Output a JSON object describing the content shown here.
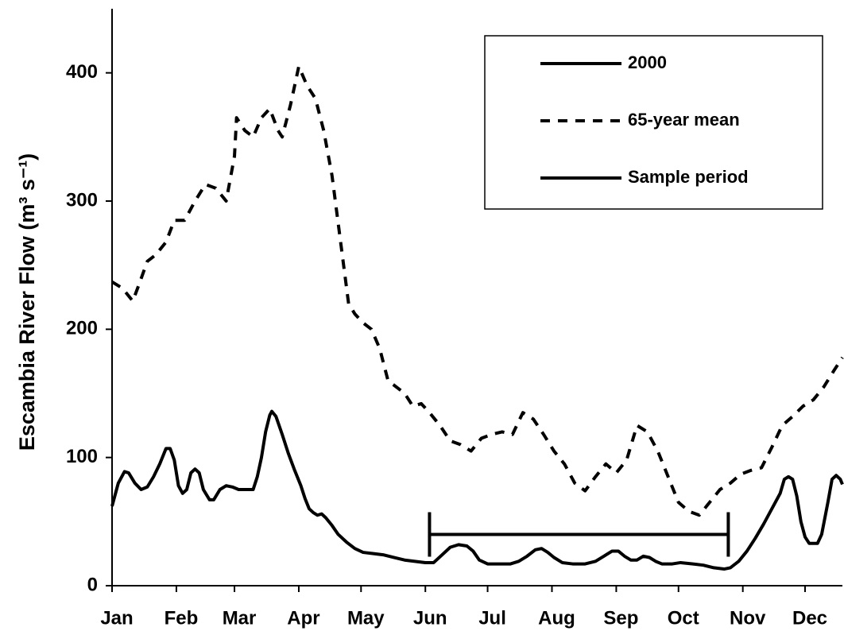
{
  "chart_data": {
    "type": "line",
    "y_label": "Escambia River Flow (m³ s⁻¹)",
    "xlim": [
      0,
      352
    ],
    "ylim": [
      0,
      450
    ],
    "xticks": [
      {
        "value": 0,
        "label": "Jan"
      },
      {
        "value": 31,
        "label": "Feb"
      },
      {
        "value": 59,
        "label": "Mar"
      },
      {
        "value": 90,
        "label": "Apr"
      },
      {
        "value": 120,
        "label": "May"
      },
      {
        "value": 151,
        "label": "Jun"
      },
      {
        "value": 181,
        "label": "Jul"
      },
      {
        "value": 212,
        "label": "Aug"
      },
      {
        "value": 243,
        "label": "Sep"
      },
      {
        "value": 273,
        "label": "Oct"
      },
      {
        "value": 304,
        "label": "Nov"
      },
      {
        "value": 334,
        "label": "Dec"
      }
    ],
    "yticks": [
      0,
      100,
      200,
      300,
      400
    ],
    "legend": "upper right",
    "series": [
      {
        "name": "2000",
        "color": "#000000",
        "dash": false,
        "x": [
          0,
          3,
          6,
          8,
          11,
          14,
          17,
          20,
          23,
          26,
          28,
          30,
          32,
          34,
          36,
          38,
          40,
          42,
          44,
          47,
          49,
          52,
          55,
          58,
          61,
          65,
          68,
          70,
          72,
          74,
          76,
          77,
          79,
          82,
          85,
          88,
          91,
          93,
          95,
          97,
          99,
          101,
          103,
          106,
          109,
          113,
          117,
          121,
          126,
          131,
          136,
          141,
          146,
          151,
          155,
          159,
          163,
          167,
          171,
          174,
          177,
          181,
          186,
          192,
          196,
          200,
          204,
          207,
          210,
          213,
          217,
          222,
          228,
          233,
          237,
          241,
          244,
          247,
          250,
          253,
          256,
          259,
          262,
          265,
          270,
          274,
          280,
          285,
          290,
          295,
          298,
          302,
          306,
          310,
          314,
          318,
          322,
          324,
          326,
          328,
          330,
          332,
          334,
          336,
          340,
          342,
          345,
          347,
          349,
          351,
          352
        ],
        "values": [
          62,
          80,
          89,
          88,
          80,
          75,
          77,
          85,
          95,
          107,
          107,
          98,
          78,
          72,
          75,
          88,
          91,
          88,
          75,
          67,
          67,
          75,
          78,
          77,
          75,
          75,
          75,
          85,
          100,
          120,
          133,
          136,
          132,
          118,
          103,
          90,
          78,
          68,
          60,
          57,
          55,
          56,
          53,
          47,
          40,
          34,
          29,
          26,
          25,
          24,
          22,
          20,
          19,
          18,
          18,
          24,
          30,
          32,
          31,
          27,
          20,
          17,
          17,
          17,
          19,
          23,
          28,
          29,
          26,
          22,
          18,
          17,
          17,
          19,
          23,
          27,
          27,
          23,
          20,
          20,
          23,
          22,
          19,
          17,
          17,
          18,
          17,
          16,
          14,
          13,
          14,
          19,
          27,
          37,
          48,
          60,
          72,
          83,
          85,
          83,
          70,
          50,
          38,
          33,
          33,
          40,
          65,
          83,
          86,
          83,
          79
        ]
      },
      {
        "name": "65-year mean",
        "color": "#000000",
        "dash": true,
        "x": [
          0,
          5,
          10,
          13,
          17,
          21,
          26,
          30,
          35,
          40,
          45,
          50,
          55,
          59,
          60,
          64,
          68,
          72,
          76,
          80,
          82,
          86,
          90,
          94,
          98,
          102,
          106,
          110,
          114,
          117,
          121,
          125,
          129,
          133,
          137,
          141,
          145,
          149,
          153,
          158,
          163,
          168,
          173,
          178,
          183,
          188,
          193,
          198,
          203,
          208,
          213,
          218,
          223,
          228,
          233,
          238,
          243,
          248,
          253,
          258,
          263,
          268,
          273,
          278,
          283,
          288,
          293,
          298,
          303,
          308,
          313,
          318,
          323,
          328,
          333,
          338,
          343,
          348,
          352
        ],
        "values": [
          237,
          232,
          222,
          235,
          253,
          258,
          268,
          285,
          285,
          300,
          313,
          310,
          300,
          335,
          365,
          355,
          350,
          365,
          372,
          355,
          350,
          375,
          405,
          390,
          380,
          355,
          320,
          270,
          220,
          212,
          205,
          200,
          185,
          160,
          155,
          150,
          140,
          142,
          135,
          125,
          113,
          110,
          105,
          115,
          118,
          120,
          118,
          135,
          130,
          118,
          105,
          95,
          80,
          74,
          85,
          95,
          88,
          98,
          125,
          120,
          105,
          85,
          65,
          58,
          55,
          65,
          75,
          80,
          87,
          90,
          92,
          108,
          125,
          132,
          140,
          145,
          155,
          168,
          178
        ]
      },
      {
        "name": "Sample period",
        "color": "#000000",
        "dash": false,
        "caps": true,
        "x": [
          153,
          297
        ],
        "values": [
          40,
          40
        ]
      }
    ]
  }
}
